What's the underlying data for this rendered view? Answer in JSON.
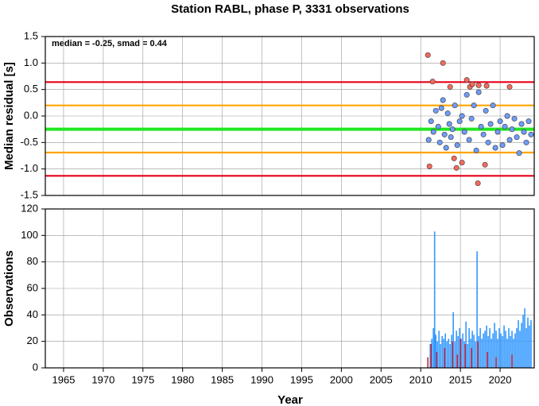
{
  "chart_data": [
    {
      "type": "scatter",
      "title": "Station RABL, phase P, 3331 observations",
      "ylabel": "Median residual [s]",
      "annotation": "median = -0.25, smad = 0.44",
      "xlim": [
        1962.7,
        2024.3
      ],
      "ylim": [
        -1.5,
        1.5
      ],
      "yticks": [
        1.5,
        {
          "value": 1,
          "label": "1.0"
        },
        0.5,
        {
          "value": 0,
          "label": "0.0"
        },
        -0.5,
        {
          "value": -1,
          "label": "-1.0"
        },
        -1.5
      ],
      "grid": true,
      "hlines": [
        {
          "value": 0.64,
          "color": "#e8001a"
        },
        {
          "value": 0.2,
          "color": "#ffa500"
        },
        {
          "value": -0.25,
          "color": "#22e622"
        },
        {
          "value": -0.69,
          "color": "#ffa500"
        },
        {
          "value": -1.13,
          "color": "#e8001a"
        }
      ],
      "series": [
        {
          "color": "#6f9cf7",
          "x": [
            2011.0,
            2011.3,
            2011.6,
            2011.9,
            2012.2,
            2012.4,
            2012.6,
            2012.8,
            2013.0,
            2013.2,
            2013.4,
            2013.6,
            2013.8,
            2014.0,
            2014.3,
            2014.6,
            2014.9,
            2015.2,
            2015.5,
            2015.8,
            2016.1,
            2016.4,
            2016.7,
            2017.0,
            2017.3,
            2017.6,
            2017.9,
            2018.2,
            2018.5,
            2018.8,
            2019.1,
            2019.4,
            2019.7,
            2020.0,
            2020.3,
            2020.6,
            2020.9,
            2021.2,
            2021.5,
            2021.8,
            2022.1,
            2022.4,
            2022.7,
            2023.0,
            2023.3,
            2023.6,
            2023.9
          ],
          "values": [
            -0.45,
            -0.1,
            -0.3,
            0.1,
            -0.2,
            -0.5,
            0.15,
            0.3,
            -0.35,
            -0.6,
            0.05,
            -0.15,
            -0.4,
            -0.25,
            0.2,
            -0.55,
            -0.1,
            0.0,
            -0.3,
            0.4,
            -0.45,
            -0.05,
            0.2,
            -0.65,
            0.45,
            -0.2,
            -0.35,
            0.1,
            -0.5,
            -0.15,
            0.2,
            -0.6,
            -0.3,
            -0.1,
            -0.55,
            -0.2,
            0.0,
            -0.45,
            -0.25,
            -0.05,
            -0.4,
            -0.7,
            -0.15,
            -0.3,
            -0.5,
            -0.1,
            -0.35
          ]
        },
        {
          "color": "#f26b5b",
          "x": [
            2010.9,
            2011.1,
            2011.5,
            2012.8,
            2013.7,
            2014.2,
            2014.5,
            2015.2,
            2015.8,
            2016.2,
            2016.5,
            2017.2,
            2017.3,
            2018.1,
            2018.3,
            2021.2
          ],
          "values": [
            1.15,
            -0.95,
            0.65,
            1.0,
            0.55,
            -0.8,
            -0.98,
            -0.88,
            0.68,
            0.55,
            0.6,
            -1.27,
            0.58,
            -0.92,
            0.57,
            0.55
          ]
        }
      ]
    },
    {
      "type": "bar",
      "ylabel": "Observations",
      "xlabel": "Year",
      "xlim": [
        1962.7,
        2024.3
      ],
      "ylim": [
        0,
        120
      ],
      "yticks": [
        0,
        20,
        40,
        60,
        80,
        100,
        120
      ],
      "xticks": [
        1965,
        1970,
        1975,
        1980,
        1985,
        1990,
        1995,
        2000,
        2005,
        2010,
        2015,
        2020
      ],
      "grid": true,
      "series": [
        {
          "color": "#3399ff",
          "x": [
            2011.2,
            2011.4,
            2011.6,
            2011.75,
            2011.9,
            2012.1,
            2012.3,
            2012.5,
            2012.7,
            2012.9,
            2013.1,
            2013.3,
            2013.5,
            2013.7,
            2013.9,
            2014.1,
            2014.3,
            2014.5,
            2014.7,
            2014.9,
            2015.1,
            2015.3,
            2015.5,
            2015.7,
            2015.9,
            2016.1,
            2016.3,
            2016.5,
            2016.7,
            2016.9,
            2017.1,
            2017.3,
            2017.5,
            2017.7,
            2017.9,
            2018.1,
            2018.3,
            2018.5,
            2018.7,
            2018.9,
            2019.1,
            2019.3,
            2019.5,
            2019.7,
            2019.9,
            2020.1,
            2020.3,
            2020.5,
            2020.7,
            2020.9,
            2021.1,
            2021.3,
            2021.5,
            2021.7,
            2021.9,
            2022.1,
            2022.3,
            2022.5,
            2022.7,
            2022.9,
            2023.1,
            2023.3,
            2023.5,
            2023.7,
            2023.9
          ],
          "values": [
            18,
            22,
            30,
            103,
            25,
            20,
            28,
            18,
            24,
            22,
            26,
            20,
            22,
            18,
            25,
            42,
            20,
            28,
            24,
            30,
            22,
            26,
            20,
            35,
            18,
            30,
            22,
            28,
            25,
            20,
            88,
            24,
            30,
            22,
            26,
            28,
            32,
            24,
            30,
            22,
            26,
            34,
            28,
            22,
            30,
            26,
            24,
            32,
            28,
            22,
            30,
            24,
            28,
            22,
            26,
            30,
            36,
            28,
            34,
            40,
            45,
            30,
            38,
            32,
            36
          ]
        },
        {
          "color": "#c8283c",
          "x": [
            2010.9,
            2011.3,
            2012.0,
            2013.0,
            2014.0,
            2014.6,
            2015.0,
            2015.6,
            2016.4,
            2017.2,
            2018.4,
            2019.5,
            2021.5
          ],
          "values": [
            8,
            18,
            12,
            15,
            20,
            10,
            22,
            18,
            15,
            20,
            12,
            8,
            10
          ]
        }
      ]
    }
  ]
}
